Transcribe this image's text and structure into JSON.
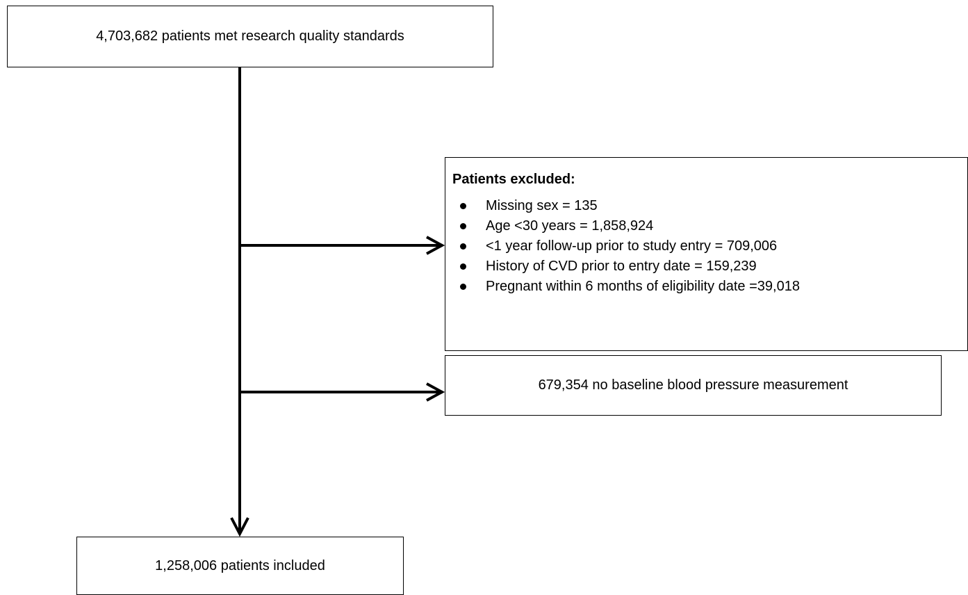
{
  "nodes": [
    {
      "label": "4,703,682 patients met research quality standards"
    },
    {
      "title": "Patients excluded:",
      "items": [
        "Missing sex = 135",
        "Age <30 years = 1,858,924",
        "<1 year follow-up prior to study entry = 709,006",
        "History of CVD prior to entry date = 159,239",
        "Pregnant within 6 months of eligibility date =39,018"
      ]
    },
    {
      "label": "679,354 no baseline blood pressure measurement"
    },
    {
      "label": "1,258,006 patients included"
    }
  ]
}
